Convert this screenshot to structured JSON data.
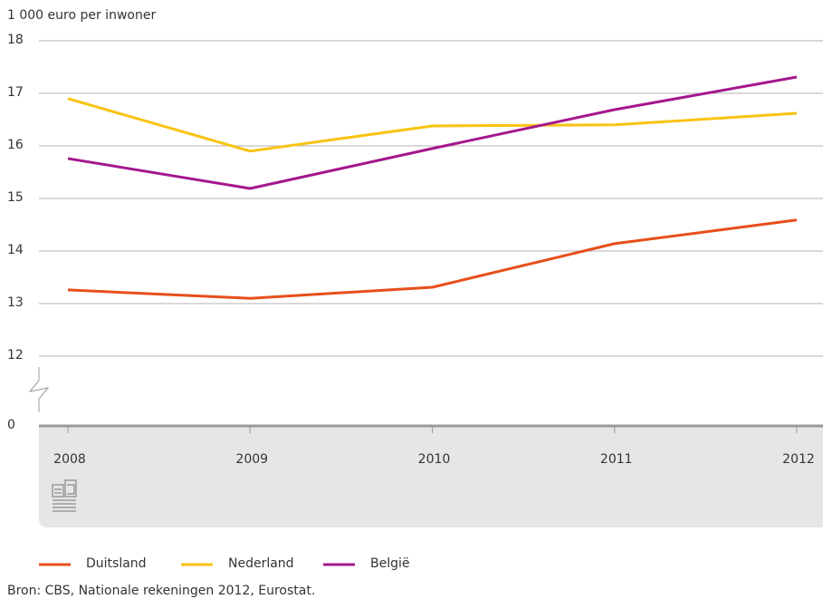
{
  "chart_data": {
    "type": "line",
    "y_label": "1 000 euro per inwoner",
    "source": "Bron: CBS, Nationale rekeningen 2012, Eurostat.",
    "x": [
      2008,
      2009,
      2010,
      2011,
      2012
    ],
    "xlim": [
      2008,
      2012
    ],
    "ylim": [
      12,
      18
    ],
    "yticks": [
      0,
      12,
      13,
      14,
      15,
      16,
      17,
      18
    ],
    "y_break": [
      0,
      12
    ],
    "grid": true,
    "series": [
      {
        "name": "Duitsland",
        "color": "#e84e1b",
        "values": [
          13.26,
          13.1,
          13.31,
          14.14,
          14.59
        ]
      },
      {
        "name": "Nederland",
        "color": "#f9c312",
        "values": [
          16.9,
          15.9,
          16.38,
          16.4,
          16.62
        ]
      },
      {
        "name": "België",
        "color": "#a5178c",
        "values": [
          15.76,
          15.19,
          15.95,
          16.69,
          17.31
        ]
      }
    ]
  }
}
